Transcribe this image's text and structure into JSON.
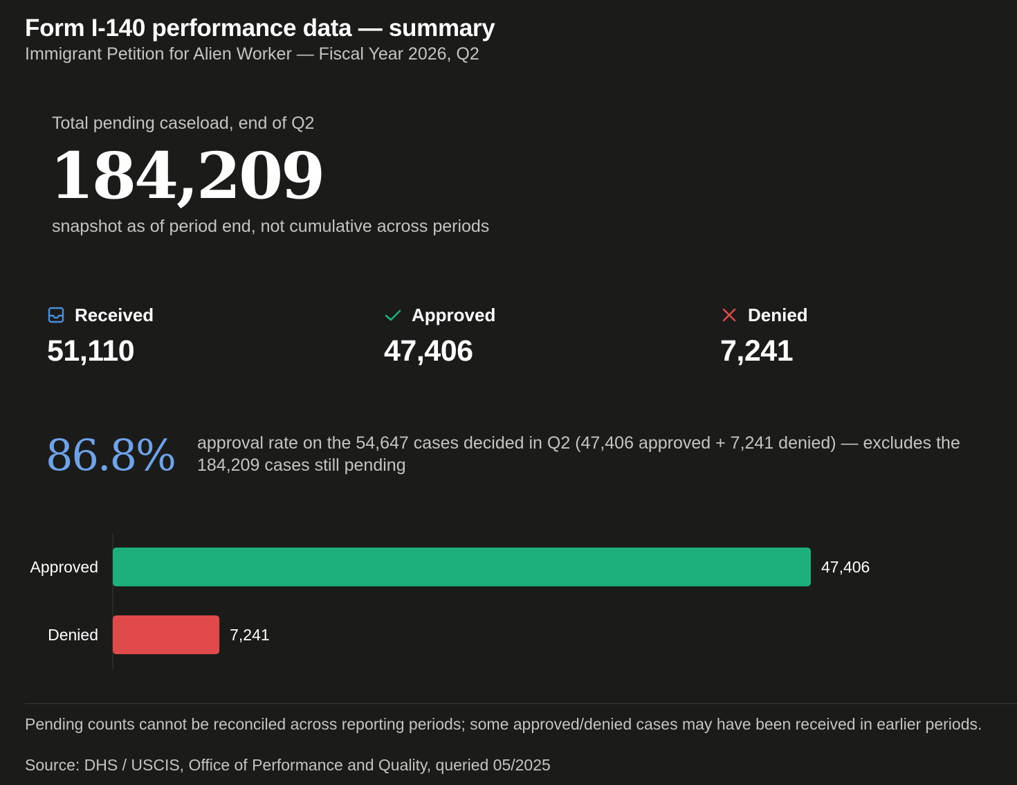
{
  "header": {
    "title": "Form I-140 performance data — summary",
    "subtitle": "Immigrant Petition for Alien Worker — Fiscal Year 2026, Q2"
  },
  "pending": {
    "label": "Total pending caseload, end of Q2",
    "value": "184,209",
    "note": "snapshot as of period end, not cumulative across periods"
  },
  "stats": {
    "received": {
      "label": "Received",
      "value": "51,110",
      "icon": "inbox-icon",
      "color": "#4a8fe0"
    },
    "approved": {
      "label": "Approved",
      "value": "47,406",
      "icon": "check-icon",
      "color": "#1db07c"
    },
    "denied": {
      "label": "Denied",
      "value": "7,241",
      "icon": "x-icon",
      "color": "#e04a4a"
    }
  },
  "rate": {
    "value": "86.8%",
    "text": "approval rate on the 54,647 cases decided in Q2 (47,406 approved + 7,241 denied) — excludes the 184,209 cases still pending"
  },
  "chart_data": {
    "type": "bar",
    "orientation": "horizontal",
    "categories": [
      "Approved",
      "Denied"
    ],
    "values": [
      47406,
      7241
    ],
    "value_labels": [
      "47,406",
      "7,241"
    ],
    "colors": [
      "#1db07c",
      "#e04a4a"
    ],
    "grid": false,
    "legend": "none"
  },
  "footer": {
    "note": "Pending counts cannot be reconciled across reporting periods; some approved/denied cases may have been received in earlier periods.",
    "source": "Source: DHS / USCIS, Office of Performance and Quality, queried 05/2025"
  }
}
